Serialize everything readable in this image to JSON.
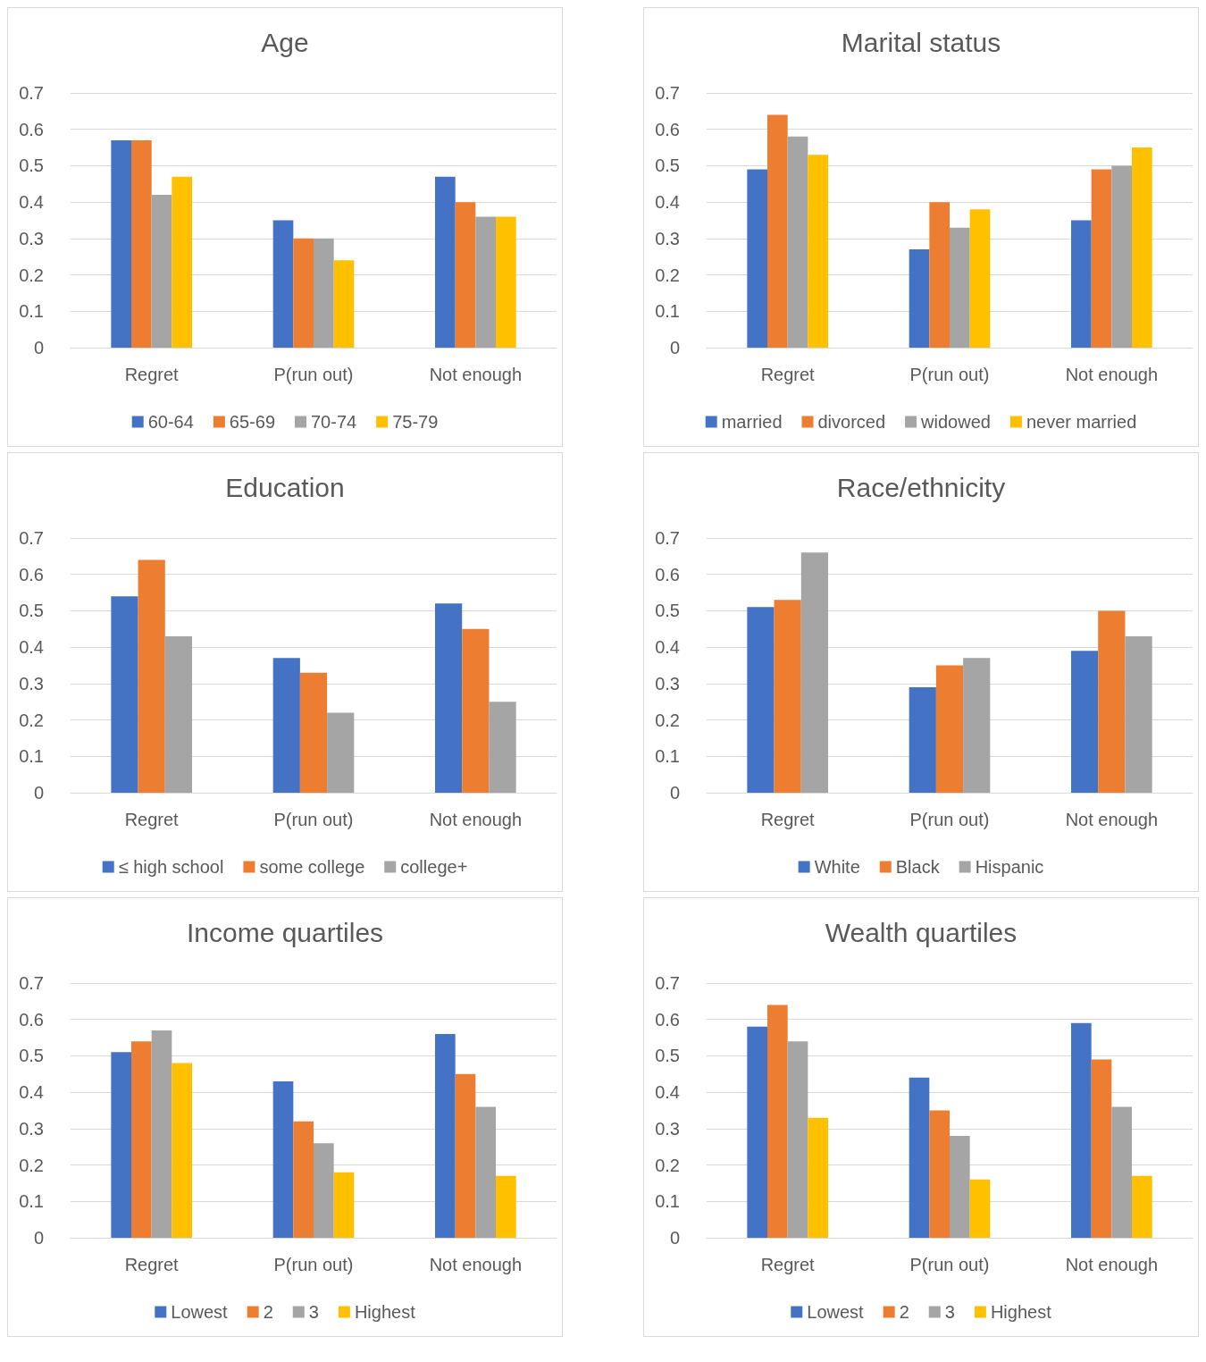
{
  "chart_data": [
    {
      "type": "bar",
      "title": "Age",
      "categories": [
        "Regret",
        "P(run out)",
        "Not enough"
      ],
      "ylim": [
        0,
        0.7
      ],
      "yticks": [
        0,
        0.1,
        0.2,
        0.3,
        0.4,
        0.5,
        0.6,
        0.7
      ],
      "grid": "y",
      "legend": "bottom",
      "series": [
        {
          "name": "60-64",
          "color": "#4472c4",
          "values": [
            0.57,
            0.35,
            0.47
          ]
        },
        {
          "name": "65-69",
          "color": "#ed7d31",
          "values": [
            0.57,
            0.3,
            0.4
          ]
        },
        {
          "name": "70-74",
          "color": "#a5a5a5",
          "values": [
            0.42,
            0.3,
            0.36
          ]
        },
        {
          "name": "75-79",
          "color": "#ffc000",
          "values": [
            0.47,
            0.24,
            0.36
          ]
        }
      ]
    },
    {
      "type": "bar",
      "title": "Marital status",
      "categories": [
        "Regret",
        "P(run out)",
        "Not enough"
      ],
      "ylim": [
        0,
        0.7
      ],
      "yticks": [
        0,
        0.1,
        0.2,
        0.3,
        0.4,
        0.5,
        0.6,
        0.7
      ],
      "grid": "y",
      "legend": "bottom",
      "series": [
        {
          "name": "married",
          "color": "#4472c4",
          "values": [
            0.49,
            0.27,
            0.35
          ]
        },
        {
          "name": "divorced",
          "color": "#ed7d31",
          "values": [
            0.64,
            0.4,
            0.49
          ]
        },
        {
          "name": "widowed",
          "color": "#a5a5a5",
          "values": [
            0.58,
            0.33,
            0.5
          ]
        },
        {
          "name": "never married",
          "color": "#ffc000",
          "values": [
            0.53,
            0.38,
            0.55
          ]
        }
      ]
    },
    {
      "type": "bar",
      "title": "Education",
      "categories": [
        "Regret",
        "P(run out)",
        "Not enough"
      ],
      "ylim": [
        0,
        0.7
      ],
      "yticks": [
        0,
        0.1,
        0.2,
        0.3,
        0.4,
        0.5,
        0.6,
        0.7
      ],
      "grid": "y",
      "legend": "bottom",
      "series": [
        {
          "name": "≤ high school",
          "color": "#4472c4",
          "values": [
            0.54,
            0.37,
            0.52
          ]
        },
        {
          "name": "some college",
          "color": "#ed7d31",
          "values": [
            0.64,
            0.33,
            0.45
          ]
        },
        {
          "name": "college+",
          "color": "#a5a5a5",
          "values": [
            0.43,
            0.22,
            0.25
          ]
        }
      ]
    },
    {
      "type": "bar",
      "title": "Race/ethnicity",
      "categories": [
        "Regret",
        "P(run out)",
        "Not enough"
      ],
      "ylim": [
        0,
        0.7
      ],
      "yticks": [
        0,
        0.1,
        0.2,
        0.3,
        0.4,
        0.5,
        0.6,
        0.7
      ],
      "grid": "y",
      "legend": "bottom",
      "series": [
        {
          "name": "White",
          "color": "#4472c4",
          "values": [
            0.51,
            0.29,
            0.39
          ]
        },
        {
          "name": "Black",
          "color": "#ed7d31",
          "values": [
            0.53,
            0.35,
            0.5
          ]
        },
        {
          "name": "Hispanic",
          "color": "#a5a5a5",
          "values": [
            0.66,
            0.37,
            0.43
          ]
        }
      ]
    },
    {
      "type": "bar",
      "title": "Income quartiles",
      "categories": [
        "Regret",
        "P(run out)",
        "Not enough"
      ],
      "ylim": [
        0,
        0.7
      ],
      "yticks": [
        0,
        0.1,
        0.2,
        0.3,
        0.4,
        0.5,
        0.6,
        0.7
      ],
      "grid": "y",
      "legend": "bottom",
      "series": [
        {
          "name": "Lowest",
          "color": "#4472c4",
          "values": [
            0.51,
            0.43,
            0.56
          ]
        },
        {
          "name": "2",
          "color": "#ed7d31",
          "values": [
            0.54,
            0.32,
            0.45
          ]
        },
        {
          "name": "3",
          "color": "#a5a5a5",
          "values": [
            0.57,
            0.26,
            0.36
          ]
        },
        {
          "name": "Highest",
          "color": "#ffc000",
          "values": [
            0.48,
            0.18,
            0.17
          ]
        }
      ]
    },
    {
      "type": "bar",
      "title": "Wealth quartiles",
      "categories": [
        "Regret",
        "P(run out)",
        "Not enough"
      ],
      "ylim": [
        0,
        0.7
      ],
      "yticks": [
        0,
        0.1,
        0.2,
        0.3,
        0.4,
        0.5,
        0.6,
        0.7
      ],
      "grid": "y",
      "legend": "bottom",
      "series": [
        {
          "name": "Lowest",
          "color": "#4472c4",
          "values": [
            0.58,
            0.44,
            0.59
          ]
        },
        {
          "name": "2",
          "color": "#ed7d31",
          "values": [
            0.64,
            0.35,
            0.49
          ]
        },
        {
          "name": "3",
          "color": "#a5a5a5",
          "values": [
            0.54,
            0.28,
            0.36
          ]
        },
        {
          "name": "Highest",
          "color": "#ffc000",
          "values": [
            0.33,
            0.16,
            0.17
          ]
        }
      ]
    }
  ]
}
